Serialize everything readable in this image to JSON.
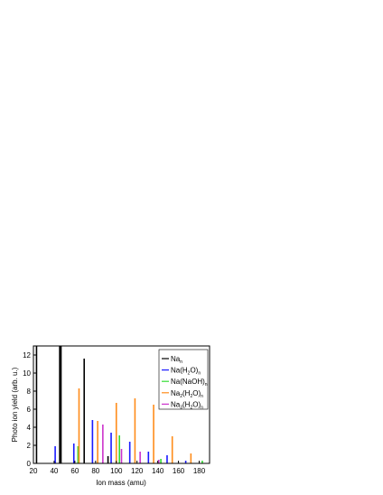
{
  "chart_data": {
    "type": "bar",
    "x_label": "Ion mass (amu)",
    "y_label": "Photo ion yield (arb. u.)",
    "xlim": [
      20,
      190
    ],
    "ylim": [
      0,
      13
    ],
    "xticks": [
      20,
      40,
      60,
      80,
      100,
      120,
      140,
      160,
      180
    ],
    "yticks": [
      0,
      2,
      4,
      6,
      8,
      10,
      12
    ],
    "legend": "upper right",
    "series": [
      {
        "name": [
          "Na",
          "n"
        ],
        "color": "#000000",
        "x": [
          23,
          46,
          69,
          92
        ],
        "values": [
          13,
          13,
          11.6,
          0.8
        ]
      },
      {
        "name": [
          "Na(H",
          "2",
          "O)",
          "n"
        ],
        "color": "#1a1aff",
        "x": [
          41,
          59,
          77,
          95,
          113,
          131,
          149,
          167
        ],
        "values": [
          1.9,
          2.2,
          4.8,
          3.4,
          2.4,
          1.3,
          0.9,
          0.3
        ]
      },
      {
        "name": [
          "Na(NaOH)",
          "n"
        ],
        "color": "#33dd33",
        "x": [
          63,
          103,
          143,
          183
        ],
        "values": [
          1.9,
          3.1,
          0.5,
          0.3
        ]
      },
      {
        "name": [
          "Na",
          "2",
          "(H",
          "2",
          "O)",
          "n"
        ],
        "color": "#ff8c1a",
        "x": [
          64,
          82,
          100,
          118,
          136,
          154,
          172
        ],
        "values": [
          8.3,
          4.7,
          6.7,
          7.2,
          6.5,
          3.0,
          1.1
        ]
      },
      {
        "name": [
          "Na",
          "3",
          "(H",
          "2",
          "O)",
          "n"
        ],
        "color": "#cc33cc",
        "x": [
          87,
          105,
          123,
          141
        ],
        "values": [
          4.3,
          1.6,
          1.3,
          0.4
        ]
      }
    ]
  }
}
